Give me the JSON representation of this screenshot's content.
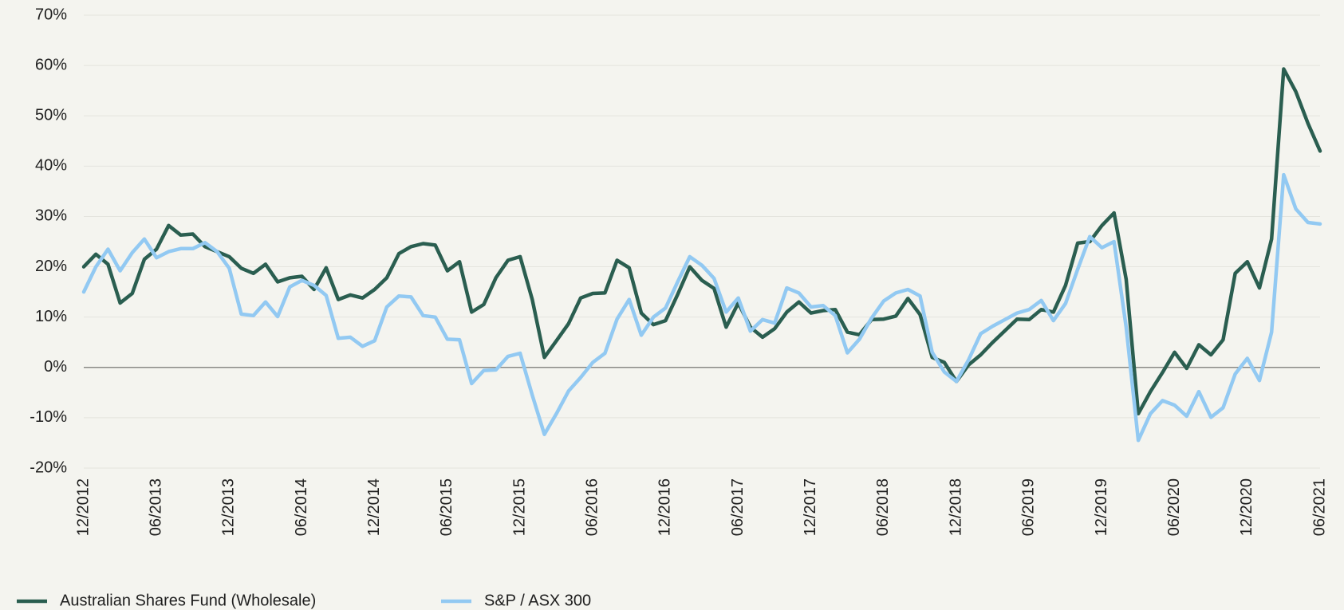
{
  "chart_data": {
    "type": "line",
    "categories": [
      "12/2012",
      null,
      null,
      null,
      null,
      null,
      "06/2013",
      null,
      null,
      null,
      null,
      null,
      "12/2013",
      null,
      null,
      null,
      null,
      null,
      "06/2014",
      null,
      null,
      null,
      null,
      null,
      "12/2014",
      null,
      null,
      null,
      null,
      null,
      "06/2015",
      null,
      null,
      null,
      null,
      null,
      "12/2015",
      null,
      null,
      null,
      null,
      null,
      "06/2016",
      null,
      null,
      null,
      null,
      null,
      "12/2016",
      null,
      null,
      null,
      null,
      null,
      "06/2017",
      null,
      null,
      null,
      null,
      null,
      "12/2017",
      null,
      null,
      null,
      null,
      null,
      "06/2018",
      null,
      null,
      null,
      null,
      null,
      "12/2018",
      null,
      null,
      null,
      null,
      null,
      "06/2019",
      null,
      null,
      null,
      null,
      null,
      "12/2019",
      null,
      null,
      null,
      null,
      null,
      "06/2020",
      null,
      null,
      null,
      null,
      null,
      "12/2020",
      null,
      null,
      null,
      null,
      null,
      "06/2021"
    ],
    "series": [
      {
        "name": "Australian Shares Fund (Wholesale)",
        "color": "#2a5e50",
        "values": [
          20,
          22.5,
          20.5,
          12.8,
          14.7,
          21.5,
          23.5,
          28.2,
          26.3,
          26.5,
          24,
          23,
          22,
          19.7,
          18.7,
          20.5,
          17,
          17.8,
          18.1,
          15.5,
          19.8,
          13.5,
          14.4,
          13.8,
          15.5,
          17.8,
          22.6,
          24,
          24.6,
          24.3,
          19.2,
          21,
          11,
          12.5,
          17.8,
          21.3,
          22,
          13.5,
          2,
          5.3,
          8.7,
          13.8,
          14.7,
          14.8,
          21.3,
          19.8,
          10.8,
          8.5,
          9.3,
          14.5,
          20,
          17.3,
          15.7,
          8,
          12.8,
          8,
          6,
          7.7,
          11,
          13,
          10.8,
          11.3,
          11.5,
          7,
          6.5,
          9.5,
          9.6,
          10.2,
          13.7,
          10.5,
          2,
          1,
          -2.8,
          0.5,
          2.5,
          5,
          7.3,
          9.6,
          9.5,
          11.5,
          11,
          16.3,
          24.7,
          25,
          28.2,
          30.7,
          17.5,
          -9.2,
          -4.8,
          -1,
          3,
          -0.2,
          4.5,
          2.5,
          5.5,
          18.7,
          21,
          15.8,
          25.5,
          59.3,
          54.8,
          48.5,
          43
        ]
      },
      {
        "name": "S&P / ASX 300",
        "color": "#92c9f2",
        "values": [
          15,
          20,
          23.5,
          19.2,
          22.8,
          25.5,
          21.8,
          23,
          23.6,
          23.6,
          24.8,
          23,
          19.7,
          10.6,
          10.3,
          13,
          10.1,
          16,
          17.3,
          16.3,
          14.3,
          5.8,
          6,
          4.2,
          5.3,
          12,
          14.2,
          14,
          10.3,
          10,
          5.6,
          5.5,
          -3.2,
          -0.6,
          -0.5,
          2.2,
          2.8,
          -5.5,
          -13.3,
          -9.2,
          -4.7,
          -2,
          1,
          2.8,
          9.6,
          13.5,
          6.4,
          10,
          11.8,
          17,
          22,
          20.3,
          17.7,
          11,
          13.8,
          7.2,
          9.5,
          8.8,
          15.8,
          14.8,
          12,
          12.3,
          10.3,
          2.9,
          5.6,
          9.8,
          13.2,
          14.8,
          15.5,
          14.2,
          3,
          -0.9,
          -2.8,
          1.5,
          6.7,
          8.2,
          9.5,
          10.8,
          11.5,
          13.3,
          9.3,
          12.7,
          19.5,
          26,
          23.8,
          25,
          8,
          -14.5,
          -9.2,
          -6.6,
          -7.5,
          -9.7,
          -4.8,
          -9.9,
          -8,
          -1.3,
          1.8,
          -2.6,
          7,
          38.3,
          31.5,
          28.8,
          28.5
        ]
      }
    ],
    "ylim": [
      -20,
      70
    ],
    "yticks": [
      {
        "value": -20,
        "label": "-20%"
      },
      {
        "value": -10,
        "label": "-10%"
      },
      {
        "value": 0,
        "label": "0%"
      },
      {
        "value": 10,
        "label": "10%"
      },
      {
        "value": 20,
        "label": "20%"
      },
      {
        "value": 30,
        "label": "30%"
      },
      {
        "value": 40,
        "label": "40%"
      },
      {
        "value": 50,
        "label": "50%"
      },
      {
        "value": 60,
        "label": "60%"
      },
      {
        "value": 70,
        "label": "70%"
      }
    ],
    "grid": true,
    "legend": "bottom"
  }
}
